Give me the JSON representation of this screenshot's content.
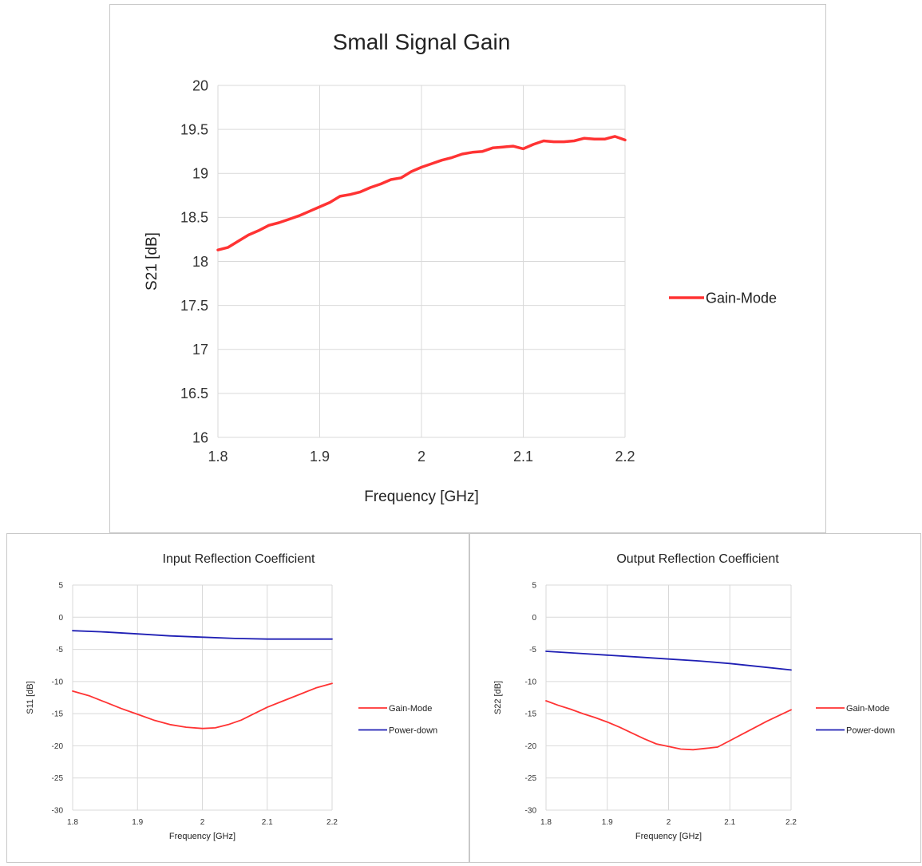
{
  "chart_data": [
    {
      "id": "small-signal-gain",
      "type": "line",
      "title": "Small Signal Gain",
      "xlabel": "Frequency [GHz]",
      "ylabel": "S21 [dB]",
      "xlim": [
        1.8,
        2.2
      ],
      "ylim": [
        16,
        20
      ],
      "xticks": [
        1.8,
        1.9,
        2,
        2.1,
        2.2
      ],
      "yticks": [
        16,
        16.5,
        17,
        17.5,
        18,
        18.5,
        19,
        19.5,
        20
      ],
      "grid": true,
      "legend_position": "right",
      "series": [
        {
          "name": "Gain-Mode",
          "color": "#ff3333",
          "x": [
            1.8,
            1.81,
            1.82,
            1.83,
            1.84,
            1.85,
            1.86,
            1.87,
            1.88,
            1.89,
            1.9,
            1.91,
            1.92,
            1.93,
            1.94,
            1.95,
            1.96,
            1.97,
            1.98,
            1.99,
            2.0,
            2.01,
            2.02,
            2.03,
            2.04,
            2.05,
            2.06,
            2.07,
            2.08,
            2.09,
            2.1,
            2.11,
            2.12,
            2.13,
            2.14,
            2.15,
            2.16,
            2.17,
            2.18,
            2.19,
            2.2
          ],
          "y": [
            18.13,
            18.16,
            18.23,
            18.3,
            18.35,
            18.41,
            18.44,
            18.48,
            18.52,
            18.57,
            18.62,
            18.67,
            18.74,
            18.76,
            18.79,
            18.84,
            18.88,
            18.93,
            18.95,
            19.02,
            19.07,
            19.11,
            19.15,
            19.18,
            19.22,
            19.24,
            19.25,
            19.29,
            19.3,
            19.31,
            19.28,
            19.33,
            19.37,
            19.36,
            19.36,
            19.37,
            19.4,
            19.39,
            19.39,
            19.42,
            19.38
          ]
        }
      ]
    },
    {
      "id": "input-reflection",
      "type": "line",
      "title": "Input Reflection Coefficient",
      "xlabel": "Frequency [GHz]",
      "ylabel": "S11 [dB]",
      "xlim": [
        1.8,
        2.2
      ],
      "ylim": [
        -30,
        5
      ],
      "xticks": [
        1.8,
        1.9,
        2,
        2.1,
        2.2
      ],
      "yticks": [
        -30,
        -25,
        -20,
        -15,
        -10,
        -5,
        0,
        5
      ],
      "grid": true,
      "legend_position": "right",
      "series": [
        {
          "name": "Gain-Mode",
          "color": "#ff3333",
          "x": [
            1.8,
            1.825,
            1.85,
            1.875,
            1.9,
            1.925,
            1.95,
            1.975,
            2.0,
            2.02,
            2.04,
            2.06,
            2.08,
            2.1,
            2.125,
            2.15,
            2.175,
            2.2
          ],
          "y": [
            -11.5,
            -12.2,
            -13.2,
            -14.2,
            -15.1,
            -16.0,
            -16.7,
            -17.1,
            -17.3,
            -17.2,
            -16.7,
            -16.0,
            -15.0,
            -14.0,
            -13.0,
            -12.0,
            -11.0,
            -10.3
          ]
        },
        {
          "name": "Power-down",
          "color": "#1f1fb4",
          "x": [
            1.8,
            1.85,
            1.9,
            1.95,
            2.0,
            2.05,
            2.1,
            2.15,
            2.2
          ],
          "y": [
            -2.1,
            -2.3,
            -2.6,
            -2.9,
            -3.1,
            -3.3,
            -3.4,
            -3.4,
            -3.4
          ]
        }
      ]
    },
    {
      "id": "output-reflection",
      "type": "line",
      "title": "Output Reflection Coefficient",
      "xlabel": "Frequency [GHz]",
      "ylabel": "S22 [dB]",
      "xlim": [
        1.8,
        2.2
      ],
      "ylim": [
        -30,
        5
      ],
      "xticks": [
        1.8,
        1.9,
        2,
        2.1,
        2.2
      ],
      "yticks": [
        -30,
        -25,
        -20,
        -15,
        -10,
        -5,
        0,
        5
      ],
      "grid": true,
      "legend_position": "right",
      "series": [
        {
          "name": "Gain-Mode",
          "color": "#ff3333",
          "x": [
            1.8,
            1.82,
            1.84,
            1.86,
            1.88,
            1.9,
            1.92,
            1.94,
            1.96,
            1.98,
            2.0,
            2.02,
            2.04,
            2.06,
            2.08,
            2.1,
            2.12,
            2.14,
            2.16,
            2.18,
            2.2
          ],
          "y": [
            -13.0,
            -13.7,
            -14.3,
            -15.0,
            -15.6,
            -16.3,
            -17.1,
            -18.0,
            -18.9,
            -19.7,
            -20.1,
            -20.5,
            -20.6,
            -20.4,
            -20.2,
            -19.2,
            -18.2,
            -17.2,
            -16.2,
            -15.3,
            -14.4
          ]
        },
        {
          "name": "Power-down",
          "color": "#1f1fb4",
          "x": [
            1.8,
            1.85,
            1.9,
            1.95,
            2.0,
            2.05,
            2.1,
            2.15,
            2.2
          ],
          "y": [
            -5.3,
            -5.6,
            -5.9,
            -6.2,
            -6.5,
            -6.8,
            -7.2,
            -7.7,
            -8.2
          ]
        }
      ]
    }
  ]
}
